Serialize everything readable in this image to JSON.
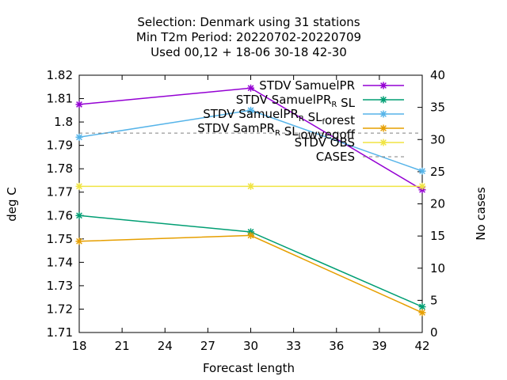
{
  "chart_data": {
    "type": "line",
    "title_lines": [
      "Selection: Denmark using    31 stations",
      "Min T2m   Period: 20220702-20220709",
      "Used  00,12  + 18-06 30-18 42-30"
    ],
    "xlabel": "Forecast length",
    "ylabel": "deg C",
    "y2label": "No cases",
    "xlim": [
      18,
      42
    ],
    "xticks": [
      18,
      21,
      24,
      27,
      30,
      33,
      36,
      39,
      42
    ],
    "ylim": [
      1.71,
      1.82
    ],
    "yticks": [
      "1.71",
      "1.72",
      "1.73",
      "1.74",
      "1.75",
      "1.76",
      "1.77",
      "1.78",
      "1.79",
      "1.8",
      "1.81",
      "1.82"
    ],
    "y2lim": [
      0,
      40
    ],
    "y2ticks": [
      0,
      5,
      10,
      15,
      20,
      25,
      30,
      35,
      40
    ],
    "grid": false,
    "legend_position": "top-right",
    "x": [
      18,
      30,
      42
    ],
    "series": [
      {
        "name": "STDV SamuelPR",
        "name_parts": [
          [
            "STDV SamuelPR",
            ""
          ]
        ],
        "color": "#9400d3",
        "marker": "x-star",
        "axis": "y",
        "values": [
          1.8075,
          1.8145,
          1.771
        ]
      },
      {
        "name": "STDV SamuelPR_R SL",
        "name_parts": [
          [
            "STDV SamuelPR",
            ""
          ],
          [
            "R",
            "sub"
          ],
          [
            " SL",
            ""
          ]
        ],
        "color": "#009e73",
        "marker": "x-star",
        "axis": "y",
        "values": [
          1.76,
          1.753,
          1.721
        ]
      },
      {
        "name": "STDV SamuelPR_R SL_forest",
        "name_parts": [
          [
            "STDV SamuelPR",
            ""
          ],
          [
            "R",
            "sub"
          ],
          [
            " SL",
            ""
          ],
          [
            "f",
            "sub"
          ],
          [
            "orest",
            ""
          ]
        ],
        "color": "#56b4e9",
        "marker": "x-star",
        "axis": "y",
        "values": [
          1.7935,
          1.805,
          1.779
        ]
      },
      {
        "name": "STDV SamPR_R SL_lowvegoff",
        "name_parts": [
          [
            "STDV SamPR",
            ""
          ],
          [
            "R",
            "sub"
          ],
          [
            " SL",
            ""
          ],
          [
            "l",
            "sub"
          ],
          [
            "owvegoff",
            ""
          ]
        ],
        "color": "#e69f00",
        "marker": "x-star",
        "axis": "y",
        "values": [
          1.749,
          1.7515,
          1.7185
        ]
      },
      {
        "name": "STDV OBS",
        "name_parts": [
          [
            "STDV OBS",
            ""
          ]
        ],
        "color": "#f0e442",
        "marker": "x-star",
        "axis": "y",
        "values": [
          1.7725,
          1.7725,
          1.7725
        ]
      },
      {
        "name": "CASES",
        "name_parts": [
          [
            "CASES",
            ""
          ]
        ],
        "color": "#808080",
        "marker": "none",
        "dashed": true,
        "axis": "y2",
        "values": [
          31,
          31,
          31
        ]
      }
    ]
  }
}
